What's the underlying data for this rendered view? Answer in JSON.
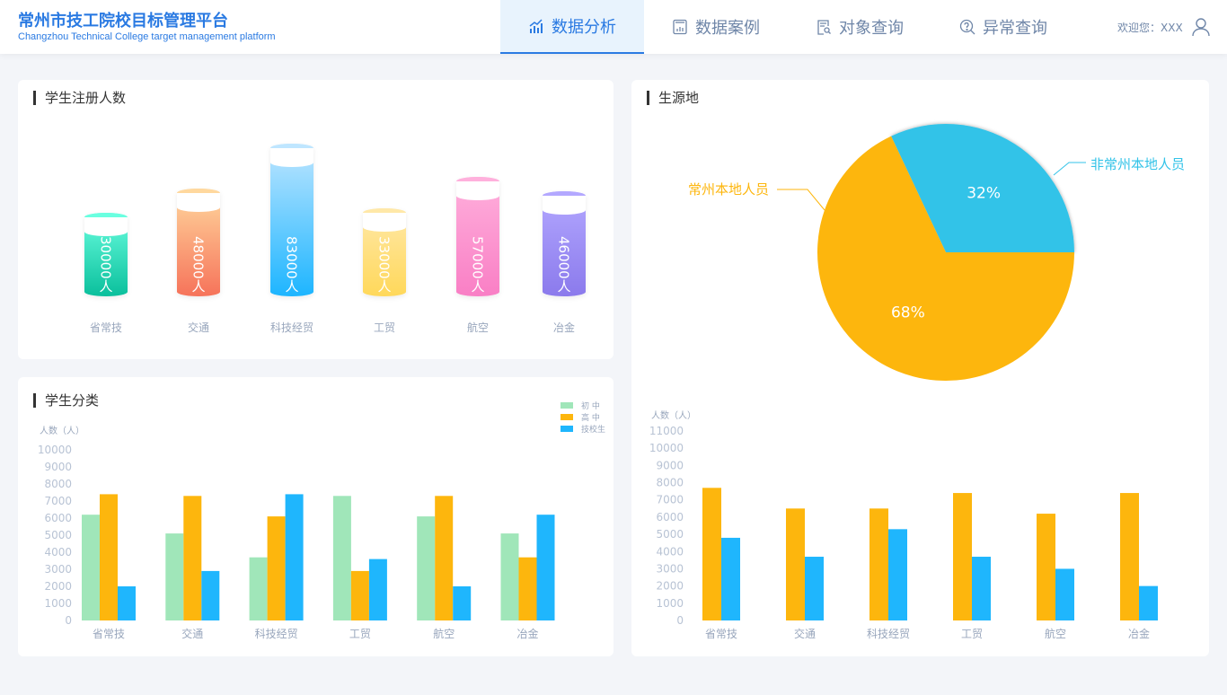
{
  "header": {
    "title": "常州市技工院校目标管理平台",
    "subtitle": "Changzhou Technical College target management platform",
    "nav": [
      {
        "label": "数据分析",
        "icon": "bar-chart-icon",
        "active": true
      },
      {
        "label": "数据案例",
        "icon": "report-icon"
      },
      {
        "label": "对象查询",
        "icon": "document-search-icon"
      },
      {
        "label": "异常查询",
        "icon": "question-search-icon"
      }
    ],
    "welcome": "欢迎您：XXX",
    "accent": "#2a7ae2"
  },
  "registration": {
    "title": "学生注册人数",
    "unit": "人",
    "items": [
      {
        "label": "省常技",
        "value": 30000,
        "display": "30000人",
        "colors": [
          "#6affe0",
          "#0abf9c"
        ]
      },
      {
        "label": "交通",
        "value": 48000,
        "display": "48000人",
        "colors": [
          "#ffd89e",
          "#f6735a"
        ]
      },
      {
        "label": "科技经贸",
        "value": 83000,
        "display": "83000人",
        "colors": [
          "#bfe6ff",
          "#1db5ff"
        ]
      },
      {
        "label": "工贸",
        "value": 33000,
        "display": "33000人",
        "colors": [
          "#ffe8a8",
          "#ffd85a"
        ]
      },
      {
        "label": "航空",
        "value": 57000,
        "display": "57000人",
        "colors": [
          "#ffb0dc",
          "#f97fc5"
        ]
      },
      {
        "label": "冶金",
        "value": 46000,
        "display": "46000人",
        "colors": [
          "#b3a8ff",
          "#8b7aec"
        ]
      }
    ]
  },
  "origin": {
    "title": "生源地",
    "chart_data": {
      "type": "pie",
      "slices": [
        {
          "label": "非常州本地人员",
          "value": 32,
          "display": "32%",
          "color": "#33c3e8"
        },
        {
          "label": "常州本地人员",
          "value": 68,
          "display": "68%",
          "color": "#fdb60d"
        }
      ]
    }
  },
  "classification": {
    "title": "学生分类",
    "chart_data": {
      "type": "bar",
      "ylabel": "人数（人）",
      "categories": [
        "省常技",
        "交通",
        "科技经贸",
        "工贸",
        "航空",
        "冶金"
      ],
      "yticks": [
        0,
        1000,
        2000,
        3000,
        4000,
        5000,
        6000,
        7000,
        8000,
        9000,
        10000
      ],
      "ylim": [
        0,
        10000
      ],
      "legend": "top-right",
      "series": [
        {
          "name": "初 中",
          "color": "#a0e6b9",
          "values": [
            6200,
            5100,
            3700,
            7300,
            6100,
            5100
          ]
        },
        {
          "name": "高 中",
          "color": "#fdb60d",
          "values": [
            7400,
            7300,
            6100,
            2900,
            7300,
            3700
          ]
        },
        {
          "name": "技校生",
          "color": "#1fb6fd",
          "values": [
            2000,
            2900,
            7400,
            3600,
            2000,
            6200
          ]
        }
      ]
    }
  },
  "origin_bars": {
    "chart_data": {
      "type": "bar",
      "ylabel": "人数（人）",
      "categories": [
        "省常技",
        "交通",
        "科技经贸",
        "工贸",
        "航空",
        "冶金"
      ],
      "yticks": [
        0,
        1000,
        2000,
        3000,
        4000,
        5000,
        6000,
        7000,
        8000,
        9000,
        10000,
        11000
      ],
      "ylim": [
        0,
        11000
      ],
      "series": [
        {
          "color": "#fdb60d",
          "values": [
            7700,
            6500,
            6500,
            7400,
            6200,
            7400
          ]
        },
        {
          "color": "#1fb6fd",
          "values": [
            4800,
            3700,
            5300,
            3700,
            3000,
            2000
          ]
        }
      ]
    }
  }
}
